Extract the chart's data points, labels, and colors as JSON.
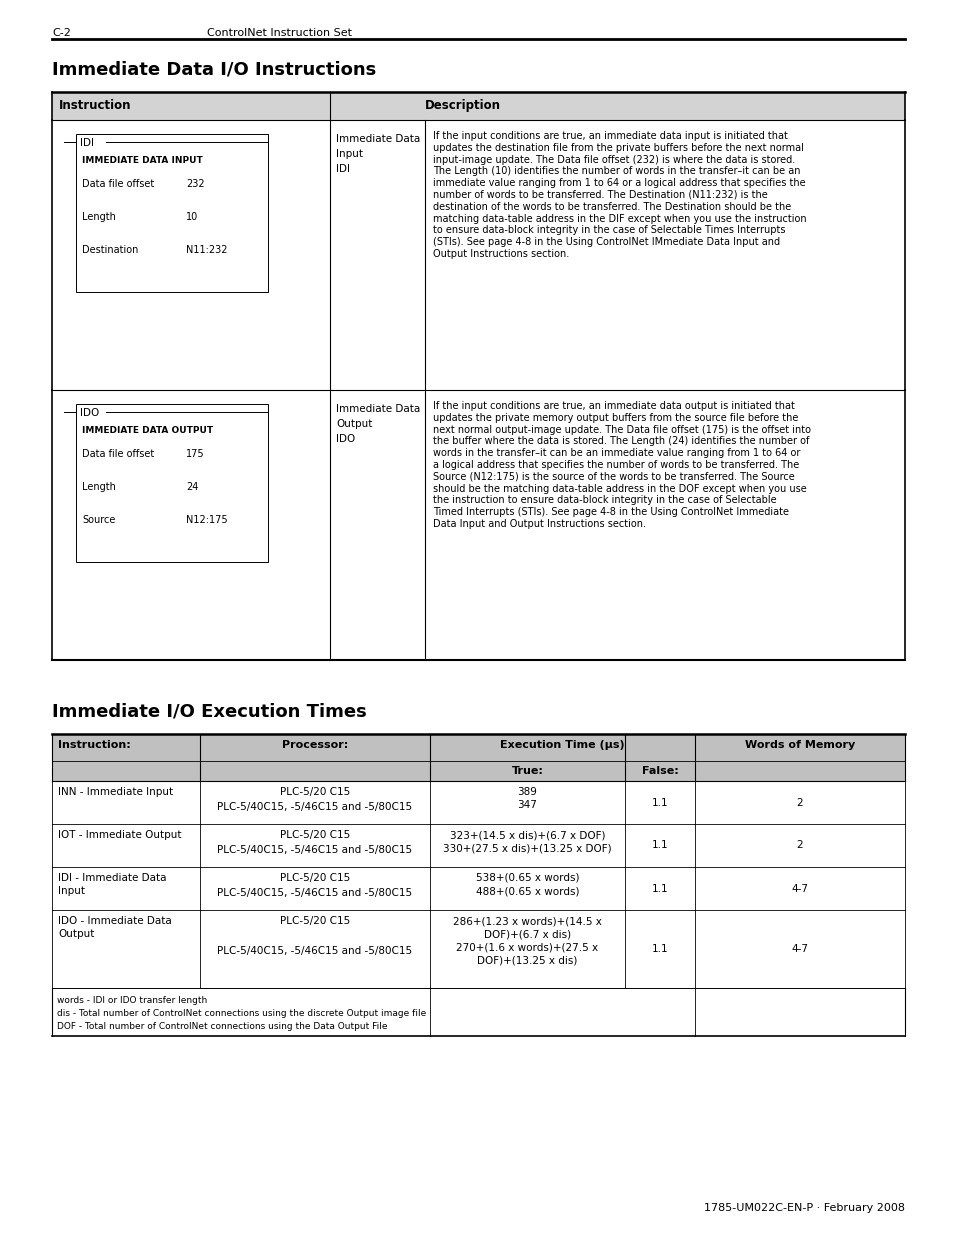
{
  "page_header_left": "C-2",
  "page_header_center": "ControlNet Instruction Set",
  "section1_title": "Immediate Data I/O Instructions",
  "section2_title": "Immediate I/O Execution Times",
  "footer": "1785-UM022C-EN-P · February 2008",
  "table1_header_bg": "#d3d3d3",
  "table1": {
    "rows": [
      {
        "label": "IDI",
        "box_title": "IMMEDIATE DATA INPUT",
        "fields": [
          [
            "Data file offset",
            "232"
          ],
          [
            "Length",
            "10"
          ],
          [
            "Destination",
            "N11:232"
          ]
        ],
        "mid_col": "Immediate Data\nInput\nIDI",
        "description_lines": [
          "If the input conditions are true, an immediate data input is initiated that",
          "updates the destination file from the private buffers before the next normal",
          "input-image update. The Data file offset (232) is where the data is stored.",
          "The Length (10) identifies the number of words in the transfer–it can be an",
          "immediate value ranging from 1 to 64 or a logical address that specifies the",
          "number of words to be transferred. The Destination (N11:232) is the",
          "destination of the words to be transferred. The Destination should be the",
          "matching data-table address in the DIF except when you use the instruction",
          "to ensure data-block integrity in the case of Selectable Times Interrupts",
          "(STIs). See page 4-8 in the Using ControlNet IMmediate Data Input and",
          "Output Instructions section."
        ]
      },
      {
        "label": "IDO",
        "box_title": "IMMEDIATE DATA OUTPUT",
        "fields": [
          [
            "Data file offset",
            "175"
          ],
          [
            "Length",
            "24"
          ],
          [
            "Source",
            "N12:175"
          ]
        ],
        "mid_col": "Immediate Data\nOutput\nIDO",
        "description_lines": [
          "If the input conditions are true, an immediate data output is initiated that",
          "updates the private memory output buffers from the source file before the",
          "next normal output-image update. The Data file offset (175) is the offset into",
          "the buffer where the data is stored. The Length (24) identifies the number of",
          "words in the transfer–it can be an immediate value ranging from 1 to 64 or",
          "a logical address that specifies the number of words to be transferred. The",
          "Source (N12:175) is the source of the words to be transferred. The Source",
          "should be the matching data-table address in the DOF except when you use",
          "the instruction to ensure data-block integrity in the case of Selectable",
          "Timed Interrupts (STIs). See page 4-8 in the Using ControlNet Immediate",
          "Data Input and Output Instructions section."
        ]
      }
    ]
  },
  "table2": {
    "header_bg": "#c0c0c0",
    "rows": [
      {
        "instruction": "INN - Immediate Input",
        "processor": "PLC-5/20 C15\nPLC-5/40C15, -5/46C15 and -5/80C15",
        "true_lines": [
          "389",
          "347"
        ],
        "false": "1.1",
        "words": "2"
      },
      {
        "instruction": "IOT - Immediate Output",
        "processor": "PLC-5/20 C15\nPLC-5/40C15, -5/46C15 and -5/80C15",
        "true_lines": [
          "323+(14.5 x dis)+(6.7 x DOF)",
          "330+(27.5 x dis)+(13.25 x DOF)"
        ],
        "false": "1.1",
        "words": "2"
      },
      {
        "instruction": "IDI - Immediate Data\nInput",
        "processor": "PLC-5/20 C15\nPLC-5/40C15, -5/46C15 and -5/80C15",
        "true_lines": [
          "538+(0.65 x words)",
          "488+(0.65 x words)"
        ],
        "false": "1.1",
        "words": "4-7"
      },
      {
        "instruction": "IDO - Immediate Data\nOutput",
        "processor": "PLC-5/20 C15\n\nPLC-5/40C15, -5/46C15 and -5/80C15",
        "true_lines": [
          "286+(1.23 x words)+(14.5 x",
          "DOF)+(6.7 x dis)",
          "270+(1.6 x words)+(27.5 x",
          "DOF)+(13.25 x dis)"
        ],
        "false": "1.1",
        "words": "4-7"
      }
    ],
    "footnotes": [
      "words - IDI or IDO transfer length",
      "dis - Total number of ControlNet connections using the discrete Output image file",
      "DOF - Total number of ControlNet connections using the Data Output File"
    ]
  }
}
